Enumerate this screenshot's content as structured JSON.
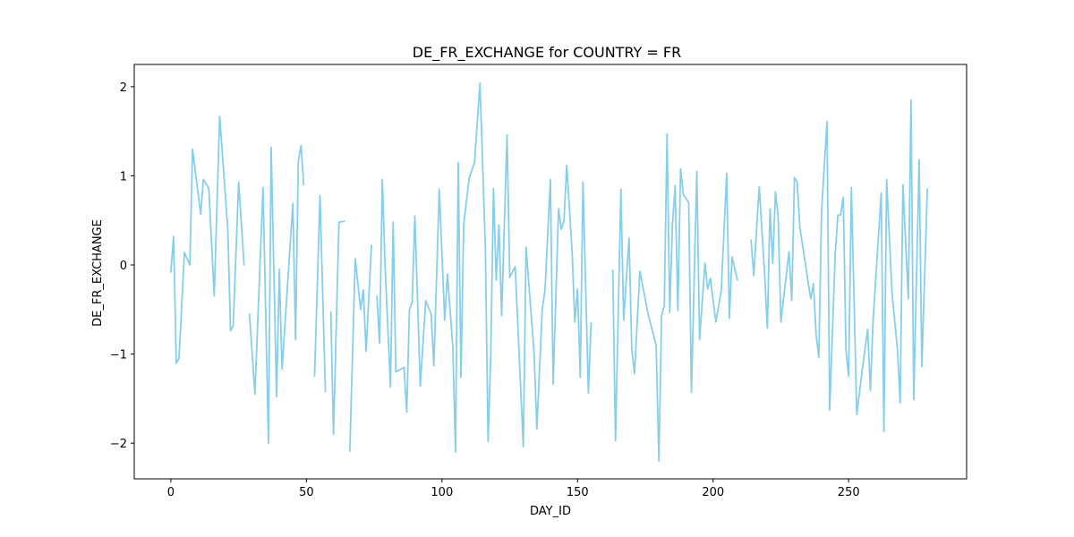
{
  "chart_data": {
    "type": "line",
    "title": "DE_FR_EXCHANGE for COUNTRY = FR",
    "xlabel": "DAY_ID",
    "ylabel": "DE_FR_EXCHANGE",
    "xlim": [
      -13.5,
      293.5
    ],
    "ylim": [
      -2.4,
      2.25
    ],
    "xticks": [
      0,
      50,
      100,
      150,
      200,
      250
    ],
    "yticks": [
      -2,
      -1,
      0,
      1,
      2
    ],
    "grid": false,
    "series": [
      {
        "color": "#87CEEB",
        "segments": [
          [
            [
              0,
              -0.08
            ],
            [
              1,
              0.32
            ],
            [
              2,
              -1.1
            ],
            [
              3,
              -1.05
            ],
            [
              5,
              0.14
            ],
            [
              7,
              0.0
            ],
            [
              8,
              1.3
            ],
            [
              11,
              0.57
            ],
            [
              12,
              0.96
            ],
            [
              14,
              0.86
            ],
            [
              16,
              -0.35
            ],
            [
              18,
              1.67
            ],
            [
              21,
              0.4
            ],
            [
              22,
              -0.74
            ],
            [
              23,
              -0.68
            ],
            [
              25,
              0.93
            ],
            [
              27,
              0.0
            ]
          ],
          [
            [
              29,
              -0.55
            ],
            [
              31,
              -1.45
            ],
            [
              34,
              0.87
            ],
            [
              36,
              -2.0
            ],
            [
              37,
              1.32
            ],
            [
              39,
              -1.48
            ],
            [
              40,
              -0.05
            ],
            [
              41,
              -1.17
            ],
            [
              45,
              0.69
            ],
            [
              46,
              -0.84
            ],
            [
              47,
              1.16
            ],
            [
              48,
              1.34
            ],
            [
              49,
              0.9
            ]
          ],
          [
            [
              53,
              -1.25
            ],
            [
              55,
              0.78
            ],
            [
              57,
              -1.42
            ]
          ],
          [
            [
              59,
              -0.53
            ],
            [
              60,
              -1.9
            ],
            [
              62,
              0.48
            ],
            [
              64,
              0.49
            ]
          ],
          [
            [
              66,
              -2.09
            ],
            [
              68,
              0.07
            ],
            [
              70,
              -0.5
            ],
            [
              71,
              -0.28
            ],
            [
              72,
              -0.97
            ],
            [
              74,
              0.22
            ]
          ],
          [
            [
              76,
              -0.35
            ],
            [
              77,
              -0.88
            ],
            [
              78,
              0.96
            ],
            [
              79,
              0.0
            ],
            [
              81,
              -1.37
            ],
            [
              82,
              0.48
            ],
            [
              83,
              -1.2
            ],
            [
              86,
              -1.15
            ],
            [
              87,
              -1.65
            ],
            [
              88,
              -0.5
            ],
            [
              89,
              -0.42
            ],
            [
              90,
              0.55
            ],
            [
              92,
              -1.36
            ],
            [
              94,
              -0.4
            ],
            [
              96,
              -0.55
            ],
            [
              97,
              -1.13
            ],
            [
              99,
              0.85
            ],
            [
              101,
              -0.62
            ],
            [
              102,
              -0.1
            ],
            [
              104,
              -0.92
            ],
            [
              105,
              -2.1
            ],
            [
              106,
              1.15
            ],
            [
              107,
              -1.26
            ],
            [
              108,
              0.45
            ],
            [
              110,
              0.97
            ],
            [
              112,
              1.15
            ],
            [
              114,
              2.04
            ],
            [
              116,
              0.2
            ],
            [
              117,
              -1.98
            ],
            [
              118,
              -1.0
            ],
            [
              119,
              0.86
            ],
            [
              120,
              -0.17
            ],
            [
              121,
              0.45
            ],
            [
              122,
              -0.57
            ],
            [
              124,
              1.46
            ],
            [
              125,
              -0.14
            ],
            [
              127,
              -0.02
            ],
            [
              130,
              -2.04
            ],
            [
              131,
              0.2
            ],
            [
              134,
              -1.0
            ],
            [
              135,
              -1.84
            ],
            [
              137,
              -0.49
            ],
            [
              138,
              -0.28
            ],
            [
              140,
              0.96
            ],
            [
              141,
              -1.34
            ],
            [
              143,
              0.63
            ],
            [
              144,
              0.4
            ],
            [
              145,
              0.49
            ],
            [
              146,
              1.12
            ],
            [
              148,
              0.15
            ],
            [
              149,
              -0.64
            ],
            [
              150,
              -0.27
            ],
            [
              151,
              -1.26
            ],
            [
              152,
              0.93
            ],
            [
              154,
              -1.44
            ],
            [
              155,
              -0.65
            ]
          ],
          [
            [
              163,
              -0.06
            ],
            [
              164,
              -1.97
            ],
            [
              166,
              0.85
            ],
            [
              167,
              -0.62
            ],
            [
              169,
              0.3
            ],
            [
              170,
              -0.94
            ],
            [
              171,
              -1.22
            ],
            [
              173,
              -0.07
            ],
            [
              176,
              -0.55
            ],
            [
              179,
              -0.9
            ],
            [
              180,
              -2.2
            ],
            [
              181,
              -0.57
            ],
            [
              182,
              -0.45
            ],
            [
              183,
              1.47
            ],
            [
              184,
              -0.53
            ],
            [
              185,
              0.45
            ],
            [
              186,
              0.89
            ],
            [
              187,
              -0.51
            ],
            [
              188,
              1.08
            ],
            [
              189,
              0.79
            ],
            [
              191,
              0.7
            ],
            [
              192,
              -1.43
            ],
            [
              194,
              1.05
            ],
            [
              195,
              -0.84
            ],
            [
              197,
              0.02
            ],
            [
              198,
              -0.27
            ],
            [
              199,
              -0.15
            ],
            [
              201,
              -0.64
            ],
            [
              203,
              -0.29
            ],
            [
              205,
              1.03
            ],
            [
              206,
              -0.6
            ],
            [
              207,
              0.09
            ],
            [
              209,
              -0.17
            ]
          ],
          [
            [
              214,
              0.28
            ],
            [
              215,
              -0.12
            ],
            [
              217,
              0.88
            ],
            [
              219,
              -0.1
            ],
            [
              220,
              -0.71
            ],
            [
              221,
              0.63
            ],
            [
              222,
              0.02
            ],
            [
              223,
              0.82
            ],
            [
              224,
              0.53
            ],
            [
              225,
              -0.64
            ],
            [
              228,
              0.15
            ],
            [
              229,
              -0.4
            ],
            [
              230,
              0.98
            ],
            [
              231,
              0.93
            ],
            [
              232,
              0.42
            ],
            [
              236,
              -0.38
            ],
            [
              237,
              -0.21
            ],
            [
              238,
              -0.78
            ],
            [
              239,
              -1.04
            ],
            [
              240,
              0.6
            ],
            [
              242,
              1.61
            ],
            [
              243,
              -1.63
            ],
            [
              245,
              0.1
            ],
            [
              246,
              0.56
            ],
            [
              247,
              0.56
            ],
            [
              248,
              0.76
            ],
            [
              249,
              -0.95
            ],
            [
              250,
              -1.25
            ],
            [
              251,
              0.87
            ],
            [
              253,
              -1.68
            ],
            [
              255,
              -1.18
            ],
            [
              257,
              -0.72
            ],
            [
              258,
              -1.41
            ],
            [
              259,
              -0.63
            ],
            [
              262,
              0.81
            ],
            [
              263,
              -1.87
            ],
            [
              264,
              0.96
            ],
            [
              266,
              -0.32
            ],
            [
              268,
              -0.95
            ],
            [
              269,
              -1.55
            ],
            [
              270,
              0.9
            ],
            [
              272,
              -0.38
            ],
            [
              273,
              1.85
            ],
            [
              274,
              -1.51
            ],
            [
              276,
              1.18
            ],
            [
              277,
              -1.14
            ],
            [
              279,
              0.85
            ]
          ]
        ]
      }
    ]
  }
}
